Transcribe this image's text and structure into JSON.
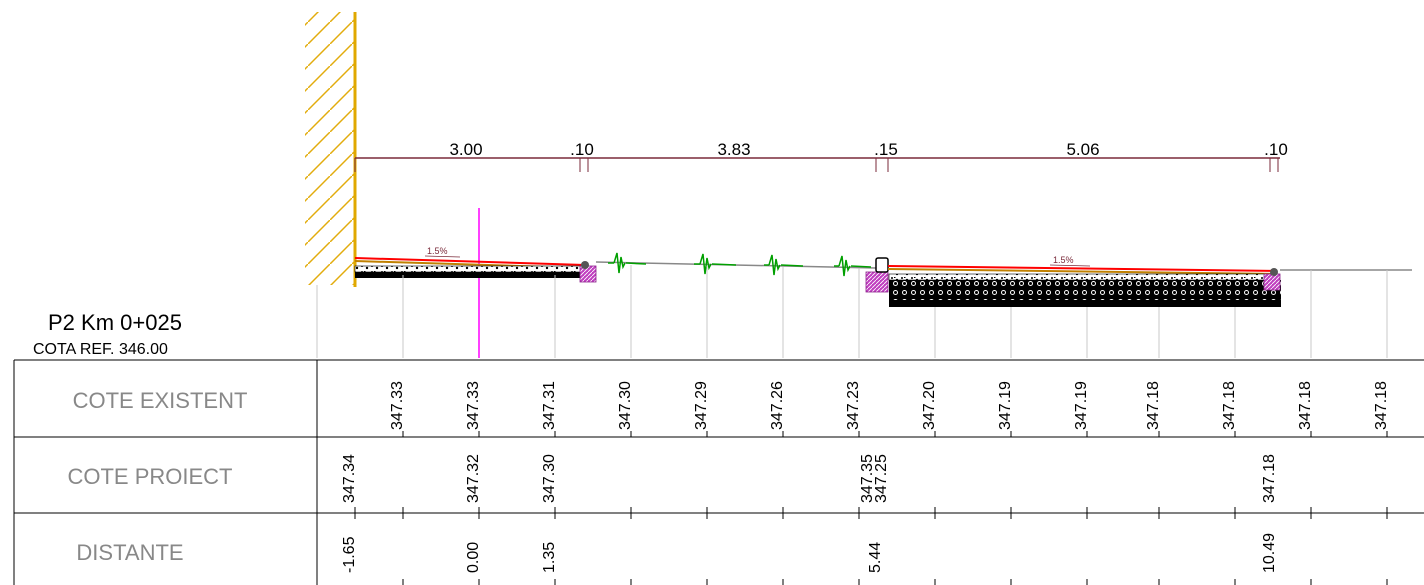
{
  "section": {
    "title": "P2  Km 0+025",
    "ref_level": "COTA REF. 346.00"
  },
  "dimensions": [
    ".10",
    "3.00",
    ".10",
    "3.83",
    ".15",
    "5.06",
    ".10"
  ],
  "slopes": [
    "1.5%",
    "1.5%"
  ],
  "rows": {
    "existing": {
      "label": "COTE EXISTENT",
      "values": [
        "347.33",
        "347.33",
        "347.31",
        "347.30",
        "347.29",
        "347.26",
        "347.23",
        "347.20",
        "347.19",
        "347.19",
        "347.18",
        "347.18",
        "347.18",
        "347.18"
      ]
    },
    "design": {
      "label": "COTE PROIECT",
      "values": [
        "347.34",
        "347.32",
        "347.30",
        "347.35",
        "347.25",
        "347.18"
      ]
    },
    "distance": {
      "label": "DISTANTE",
      "values": [
        "-1.65",
        "0.00",
        "1.35",
        "5.44",
        "10.49"
      ]
    }
  },
  "colors": {
    "dimension_line": "#7a2a3a",
    "wall": "#e0a800",
    "axis": "#ff00ff",
    "pavement_top": "#ff0000",
    "vegetation": "#00a000",
    "curb": "#c040c0",
    "ground": "#888888",
    "grid": "#c8c8c8"
  }
}
